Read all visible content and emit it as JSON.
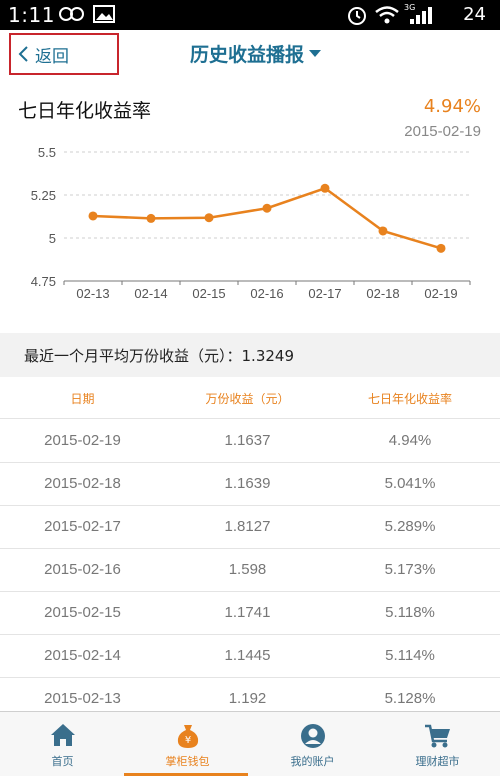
{
  "status_bar": {
    "time": "1:11",
    "network": "3G",
    "battery": "24"
  },
  "nav": {
    "back_label": "返回",
    "title": "历史收益播报"
  },
  "rate_summary": {
    "title": "七日年化收益率",
    "value": "4.94%",
    "date": "2015-02-19"
  },
  "colors": {
    "accent": "#e8821e",
    "nav_blue": "#1e6f92",
    "back_outline": "#c8252c"
  },
  "chart_data": {
    "type": "line",
    "categories": [
      "02-13",
      "02-14",
      "02-15",
      "02-16",
      "02-17",
      "02-18",
      "02-19"
    ],
    "values": [
      5.128,
      5.114,
      5.118,
      5.173,
      5.289,
      5.041,
      4.94
    ],
    "y_ticks": [
      "5.5",
      "5.25",
      "5",
      "4.75"
    ],
    "ylim": [
      4.75,
      5.5
    ],
    "grid": "horizontal dashed",
    "color": "#e8821e"
  },
  "average": {
    "label": "最近一个月平均万份收益（元）：",
    "value": "1.3249"
  },
  "table": {
    "headers": [
      "日期",
      "万份收益（元）",
      "七日年化收益率"
    ],
    "rows": [
      [
        "2015-02-19",
        "1.1637",
        "4.94%"
      ],
      [
        "2015-02-18",
        "1.1639",
        "5.041%"
      ],
      [
        "2015-02-17",
        "1.8127",
        "5.289%"
      ],
      [
        "2015-02-16",
        "1.598",
        "5.173%"
      ],
      [
        "2015-02-15",
        "1.1741",
        "5.118%"
      ],
      [
        "2015-02-14",
        "1.1445",
        "5.114%"
      ],
      [
        "2015-02-13",
        "1.192",
        "5.128%"
      ]
    ]
  },
  "tabs": [
    {
      "label": "首页",
      "icon": "home-icon"
    },
    {
      "label": "掌柜钱包",
      "icon": "money-bag-icon",
      "active": true
    },
    {
      "label": "我的账户",
      "icon": "user-icon"
    },
    {
      "label": "理财超市",
      "icon": "cart-icon"
    }
  ]
}
